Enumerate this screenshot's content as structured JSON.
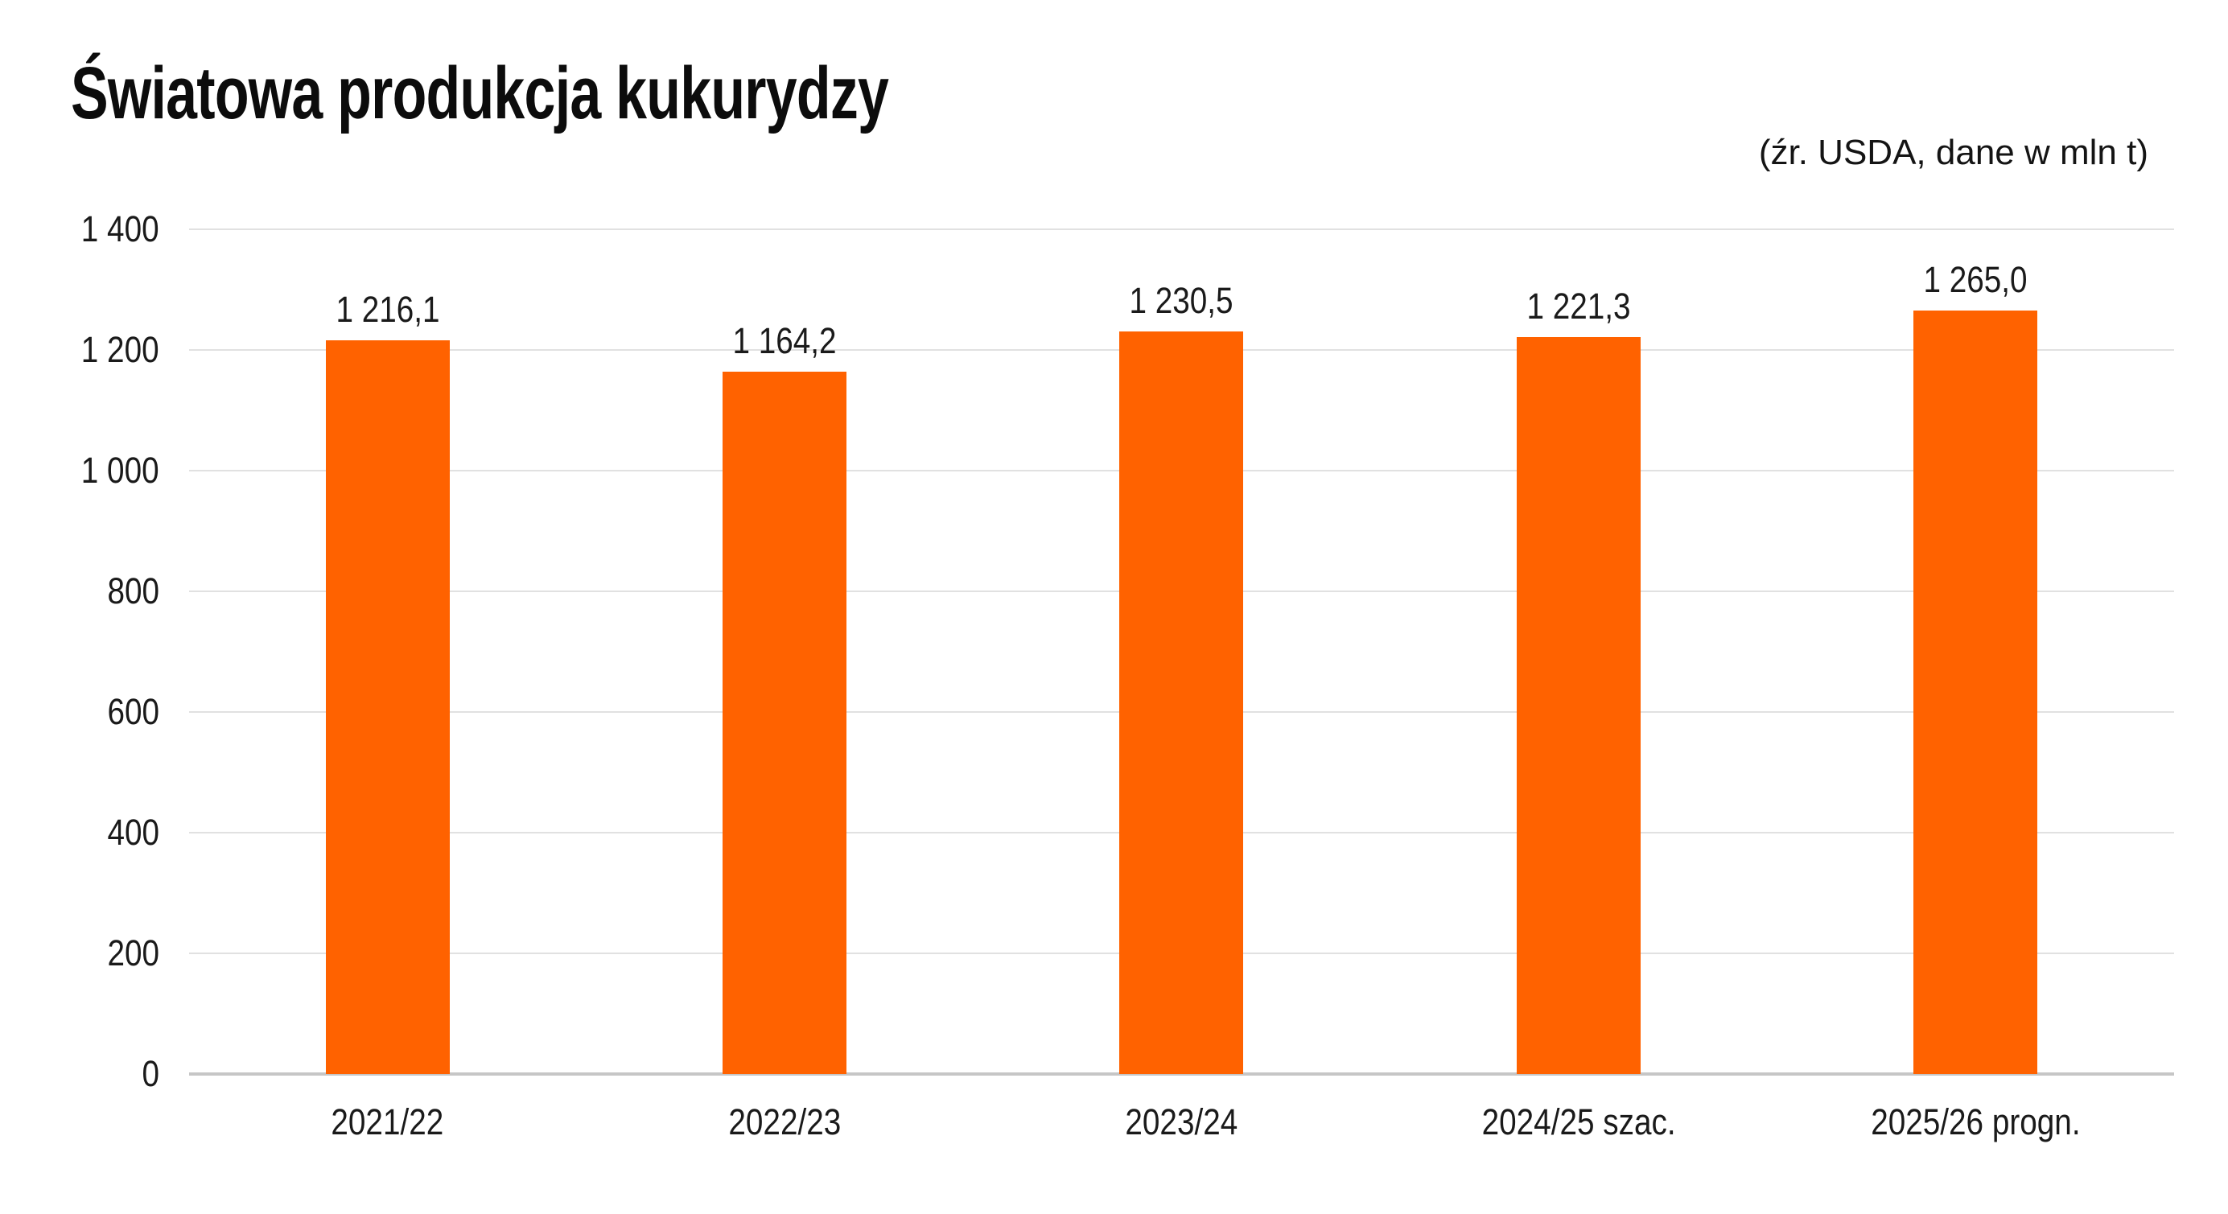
{
  "chart_data": {
    "type": "bar",
    "title": "Światowa produkcja kukurydzy",
    "subtitle": "(źr. USDA, dane w mln t)",
    "categories": [
      "2021/22",
      "2022/23",
      "2023/24",
      "2024/25 szac.",
      "2025/26 progn."
    ],
    "values": [
      1216.1,
      1164.2,
      1230.5,
      1221.3,
      1265.0
    ],
    "value_labels": [
      "1 216,1",
      "1 164,2",
      "1 230,5",
      "1 221,3",
      "1 265,0"
    ],
    "ylim": [
      0,
      1400
    ],
    "ytick_values": [
      0,
      200,
      400,
      600,
      800,
      1000,
      1200,
      1400
    ],
    "ytick_labels": [
      "0",
      "200",
      "400",
      "600",
      "800",
      "1 000",
      "1 200",
      "1 400"
    ],
    "grid": "horizontal",
    "legend": "none",
    "bar_color": "#FF6200",
    "gridline_color": "#E1E1E1",
    "axis_line_color": "#C6C6C6",
    "text_color": "#1A1A1A",
    "background_color": "#FFFFFF"
  }
}
